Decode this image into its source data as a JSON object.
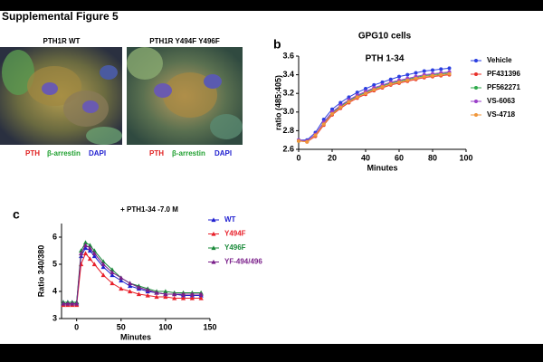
{
  "figure": {
    "title": "Supplemental Figure 5",
    "panel_b": "b",
    "panel_c": "c",
    "images": [
      {
        "title": "PTH1R WT",
        "stains": [
          "PTH",
          "β-arrestin",
          "DAPI"
        ]
      },
      {
        "title": "PTH1R Y494F Y496F",
        "stains": [
          "PTH",
          "β-arrestin",
          "DAPI"
        ]
      }
    ]
  },
  "chart_data": [
    {
      "type": "line",
      "title": "GPG10 cells",
      "subtitle": "PTH 1-34",
      "x_label": "Minutes",
      "y_label": "ratio (485:405)",
      "x": [
        0,
        5,
        10,
        15,
        20,
        25,
        30,
        35,
        40,
        45,
        50,
        55,
        60,
        65,
        70,
        75,
        80,
        85,
        90
      ],
      "xlim": [
        0,
        100
      ],
      "xticks": [
        0,
        20,
        40,
        60,
        80,
        100
      ],
      "ylim": [
        2.6,
        3.6
      ],
      "yticks": [
        {
          "value": 2.6,
          "label": "2.6"
        },
        {
          "value": 2.8,
          "label": "2.8"
        },
        {
          "value": 3.0,
          "label": "3.0"
        },
        {
          "value": 3.2,
          "label": "3.2"
        },
        {
          "value": 3.4,
          "label": "3.4"
        },
        {
          "value": 3.6,
          "label": "3.6"
        }
      ],
      "marker": "circle",
      "series": [
        {
          "name": "Vehicle",
          "color": "#2b3fe0",
          "values": [
            2.7,
            2.7,
            2.78,
            2.92,
            3.03,
            3.1,
            3.16,
            3.21,
            3.25,
            3.29,
            3.32,
            3.35,
            3.38,
            3.4,
            3.42,
            3.44,
            3.45,
            3.46,
            3.47
          ]
        },
        {
          "name": "PF431396",
          "color": "#e8302a",
          "values": [
            2.69,
            2.68,
            2.74,
            2.86,
            2.97,
            3.04,
            3.1,
            3.15,
            3.19,
            3.23,
            3.26,
            3.29,
            3.31,
            3.33,
            3.35,
            3.37,
            3.38,
            3.39,
            3.4
          ]
        },
        {
          "name": "PF562271",
          "color": "#2eaa4a",
          "values": [
            2.69,
            2.69,
            2.75,
            2.88,
            2.99,
            3.06,
            3.12,
            3.17,
            3.21,
            3.25,
            3.28,
            3.31,
            3.33,
            3.35,
            3.37,
            3.39,
            3.4,
            3.41,
            3.42
          ]
        },
        {
          "name": "VS-6063",
          "color": "#9a3fc8",
          "values": [
            2.7,
            2.69,
            2.76,
            2.89,
            3.0,
            3.07,
            3.13,
            3.18,
            3.22,
            3.26,
            3.29,
            3.32,
            3.34,
            3.36,
            3.38,
            3.4,
            3.41,
            3.42,
            3.43
          ]
        },
        {
          "name": "VS-4718",
          "color": "#f0963a",
          "values": [
            2.69,
            2.68,
            2.75,
            2.87,
            2.98,
            3.05,
            3.11,
            3.16,
            3.2,
            3.24,
            3.27,
            3.3,
            3.32,
            3.34,
            3.36,
            3.38,
            3.39,
            3.4,
            3.41
          ]
        }
      ]
    },
    {
      "type": "line",
      "title": "+ PTH1-34 -7.0 M",
      "x_label": "Minutes",
      "y_label": "Ratio 340/380",
      "x": [
        -15,
        -10,
        -5,
        0,
        5,
        10,
        15,
        20,
        30,
        40,
        50,
        60,
        70,
        80,
        90,
        100,
        110,
        120,
        130,
        140
      ],
      "xlim": [
        -17,
        150
      ],
      "xticks": [
        0,
        50,
        100,
        150
      ],
      "ylim": [
        3,
        6.5
      ],
      "yticks": [
        3,
        4,
        5,
        6
      ],
      "marker": "triangle",
      "series": [
        {
          "name": "WT",
          "color": "#1f1fd0",
          "values": [
            3.6,
            3.6,
            3.6,
            3.6,
            5.3,
            5.6,
            5.5,
            5.3,
            4.9,
            4.6,
            4.4,
            4.2,
            4.1,
            4.0,
            3.95,
            3.9,
            3.9,
            3.85,
            3.85,
            3.85
          ]
        },
        {
          "name": "Y494F",
          "color": "#e8202a",
          "values": [
            3.5,
            3.5,
            3.5,
            3.5,
            5.0,
            5.4,
            5.2,
            5.0,
            4.6,
            4.3,
            4.1,
            4.0,
            3.9,
            3.85,
            3.8,
            3.8,
            3.75,
            3.75,
            3.75,
            3.75
          ]
        },
        {
          "name": "Y496F",
          "color": "#1a8a3a",
          "values": [
            3.6,
            3.6,
            3.6,
            3.6,
            5.5,
            5.8,
            5.7,
            5.5,
            5.1,
            4.8,
            4.5,
            4.3,
            4.2,
            4.1,
            4.0,
            4.0,
            3.95,
            3.95,
            3.95,
            3.95
          ]
        },
        {
          "name": "YF-494/496",
          "color": "#7a1f8a",
          "values": [
            3.55,
            3.55,
            3.55,
            3.55,
            5.4,
            5.7,
            5.6,
            5.4,
            5.0,
            4.7,
            4.5,
            4.3,
            4.15,
            4.05,
            3.95,
            3.9,
            3.9,
            3.9,
            3.9,
            3.9
          ]
        }
      ]
    }
  ]
}
